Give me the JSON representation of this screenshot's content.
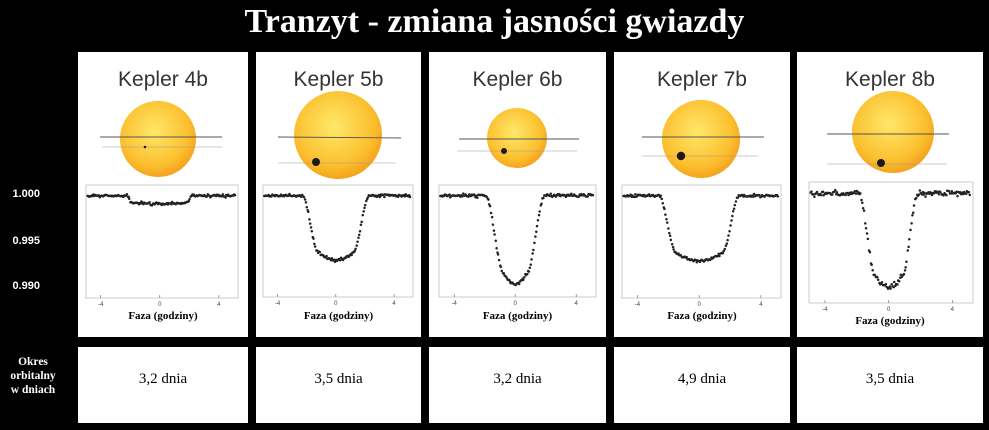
{
  "title": "Tranzyt - zmiana jasności gwiazdy",
  "y_ticks": [
    "1.000",
    "0.995",
    "0.990"
  ],
  "row_label_lines": [
    "Okres",
    "orbitalny",
    "w dniach"
  ],
  "colors": {
    "background": "#000000",
    "panel": "#ffffff",
    "star_center": "#ffe86a",
    "star_edge": "#f29a17",
    "points": "#222222"
  },
  "chart_data": [
    {
      "type": "scatter",
      "title": "Kepler 4b",
      "xlabel": "Faza (godziny)",
      "ylabel": "",
      "x_ticks": [
        "-4",
        "0",
        "4"
      ],
      "xlim": [
        -5,
        5.3
      ],
      "ylim": [
        0.9885,
        1.0012
      ],
      "baseline": 1.0,
      "depth": 0.0009,
      "half_duration": 2.2,
      "ingress": 0.35,
      "noise": 0.00012,
      "period": "3,2 dnia"
    },
    {
      "type": "scatter",
      "title": "Kepler 5b",
      "xlabel": "Faza (godziny)",
      "ylabel": "",
      "x_ticks": [
        "-4",
        "0",
        "4"
      ],
      "xlim": [
        -5,
        5.3
      ],
      "ylim": [
        0.9885,
        1.0012
      ],
      "baseline": 1.0,
      "depth": 0.0073,
      "half_duration": 2.3,
      "ingress": 1.1,
      "noise": 0.00013,
      "period": "3,5 dnia"
    },
    {
      "type": "scatter",
      "title": "Kepler 6b",
      "xlabel": "Faza (godziny)",
      "ylabel": "",
      "x_ticks": [
        "-4",
        "0",
        "4"
      ],
      "xlim": [
        -5,
        5.3
      ],
      "ylim": [
        0.9885,
        1.0012
      ],
      "baseline": 1.0,
      "depth": 0.01,
      "half_duration": 1.95,
      "ingress": 1.2,
      "noise": 0.00015,
      "period": "3,2 dnia"
    },
    {
      "type": "scatter",
      "title": "Kepler 7b",
      "xlabel": "Faza (godziny)",
      "ylabel": "",
      "x_ticks": [
        "-4",
        "0",
        "4"
      ],
      "xlim": [
        -5,
        5.3
      ],
      "ylim": [
        0.9885,
        1.0012
      ],
      "baseline": 1.0,
      "depth": 0.0073,
      "half_duration": 2.6,
      "ingress": 1.1,
      "noise": 0.00013,
      "period": "4,9 dnia"
    },
    {
      "type": "scatter",
      "title": "Kepler 8b",
      "xlabel": "Faza (godziny)",
      "ylabel": "",
      "x_ticks": [
        "-4",
        "0",
        "4"
      ],
      "xlim": [
        -5,
        5.3
      ],
      "ylim": [
        0.9885,
        1.0012
      ],
      "baseline": 1.0,
      "depth": 0.0098,
      "half_duration": 1.85,
      "ingress": 1.0,
      "noise": 0.00022,
      "period": "3,5 dnia"
    }
  ]
}
